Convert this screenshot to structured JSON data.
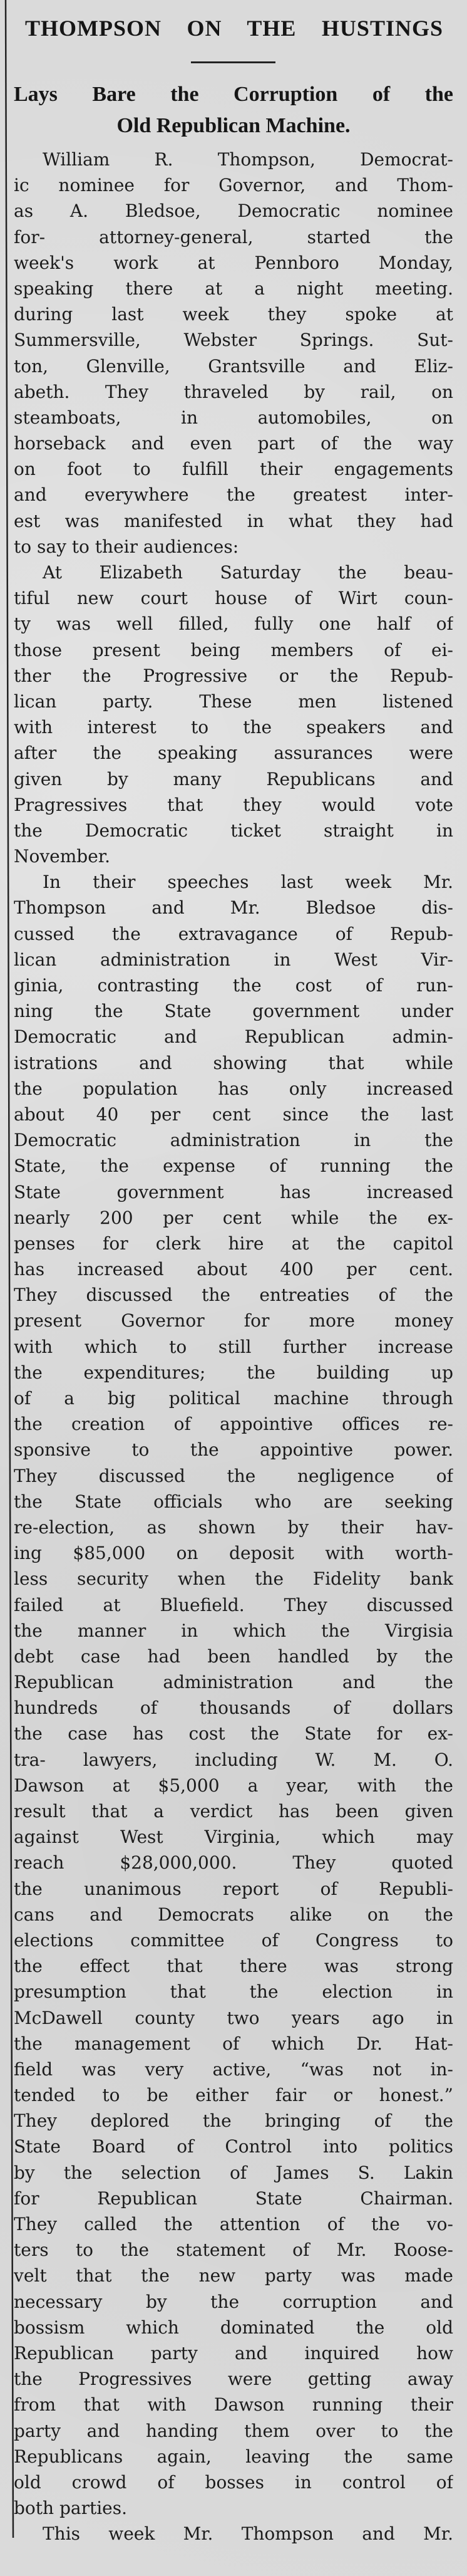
{
  "article": {
    "headline": "THOMPSON ON THE HUSTINGS",
    "subheadline": [
      "Lays Bare the Corruption of the",
      "Old Republican Machine."
    ],
    "paragraphs": [
      {
        "lines": [
          "William R. Thompson, Democrat-",
          "ic nominee for Governor, and Thom-",
          "as A. Bledsoe, Democratic nominee",
          "for- attorney-general, started the",
          "week's work at Pennboro Monday,",
          "speaking there at a night meeting.",
          "during last week they spoke at",
          "Summersville, Webster Springs. Sut-",
          "ton, Glenville, Grantsville and Eliz-",
          "abeth. They thraveled by rail, on",
          "steamboats, in automobiles, on",
          "horseback and even part of the way",
          "on foot to fulfill their engagements",
          "and everywhere the greatest inter-",
          "est was manifested in what they had",
          "to say to their audiences:"
        ]
      },
      {
        "lines": [
          "At Elizabeth Saturday the beau-",
          "tiful new court house of Wirt coun-",
          "ty was well filled, fully one half of",
          "those present being members of ei-",
          "ther the Progressive or the Repub-",
          "lican party. These men listened",
          "with interest to the speakers and",
          "after the speaking assurances were",
          "given by many Republicans and",
          "Pragressives that they would vote",
          "the Democratic ticket straight in",
          "November."
        ]
      },
      {
        "lines": [
          "In their speeches last week Mr.",
          "Thompson and Mr. Bledsoe dis-",
          "cussed the extravagance of Repub-",
          "lican administration in West Vir-",
          "ginia, contrasting the cost of run-",
          "ning the State government under",
          "Democratic and Republican admin-",
          "istrations and showing that while",
          "the population has only increased",
          "about 40 per cent since the last",
          "Democratic administration in the",
          "State, the expense of running the",
          "State government has increased",
          "nearly 200 per cent while the ex-",
          "penses for clerk hire at the capitol",
          "has increased about 400 per cent.",
          "They discussed the entreaties of the",
          "present Governor for more money",
          "with which to still further increase",
          "the expenditures; the building up",
          "of a big political machine through",
          "the creation of appointive offices re-",
          "sponsive to the appointive power.",
          "They discussed the negligence of",
          "the State officials who are seeking",
          "re-election, as shown by their hav-",
          "ing $85,000 on deposit with worth-",
          "less security when the Fidelity bank",
          "failed at Bluefield. They discussed",
          "the manner in which the Virgisia",
          "debt case had been handled by the",
          "Republican administration and the",
          "hundreds of thousands of dollars",
          "the case has cost the State for ex-",
          "tra- lawyers, including W. M. O.",
          "Dawson at $5,000 a year, with the",
          "result that a verdict has been given",
          "against West Virginia, which may",
          "reach $28,000,000. They quoted",
          "the unanimous report of Republi-",
          "cans and Democrats alike on the",
          "elections committee of Congress to",
          "the effect that there was strong",
          "presumption that the election in",
          "McDawell county two years ago in",
          "the management of which Dr. Hat-",
          "field was very active, “was not in-",
          "tended to be either fair or honest.”",
          "They deplored the bringing of the",
          "State Board of Control into politics",
          "by the selection of James S. Lakin",
          "for Republican State Chairman.",
          "They called the attention of the vo-",
          "ters to the statement of Mr. Roose-",
          "velt that the new party was made",
          "necessary by the corruption and",
          "bossism which dominated the old",
          "Republican party and inquired how",
          "the Progressives were getting away",
          "from that with Dawson running their",
          "party and handing them over to the",
          "Republicans again, leaving the same",
          "old crowd of bosses in control of",
          "both parties."
        ]
      },
      {
        "lines": [
          "This week Mr. Thompson and Mr."
        ]
      }
    ]
  }
}
